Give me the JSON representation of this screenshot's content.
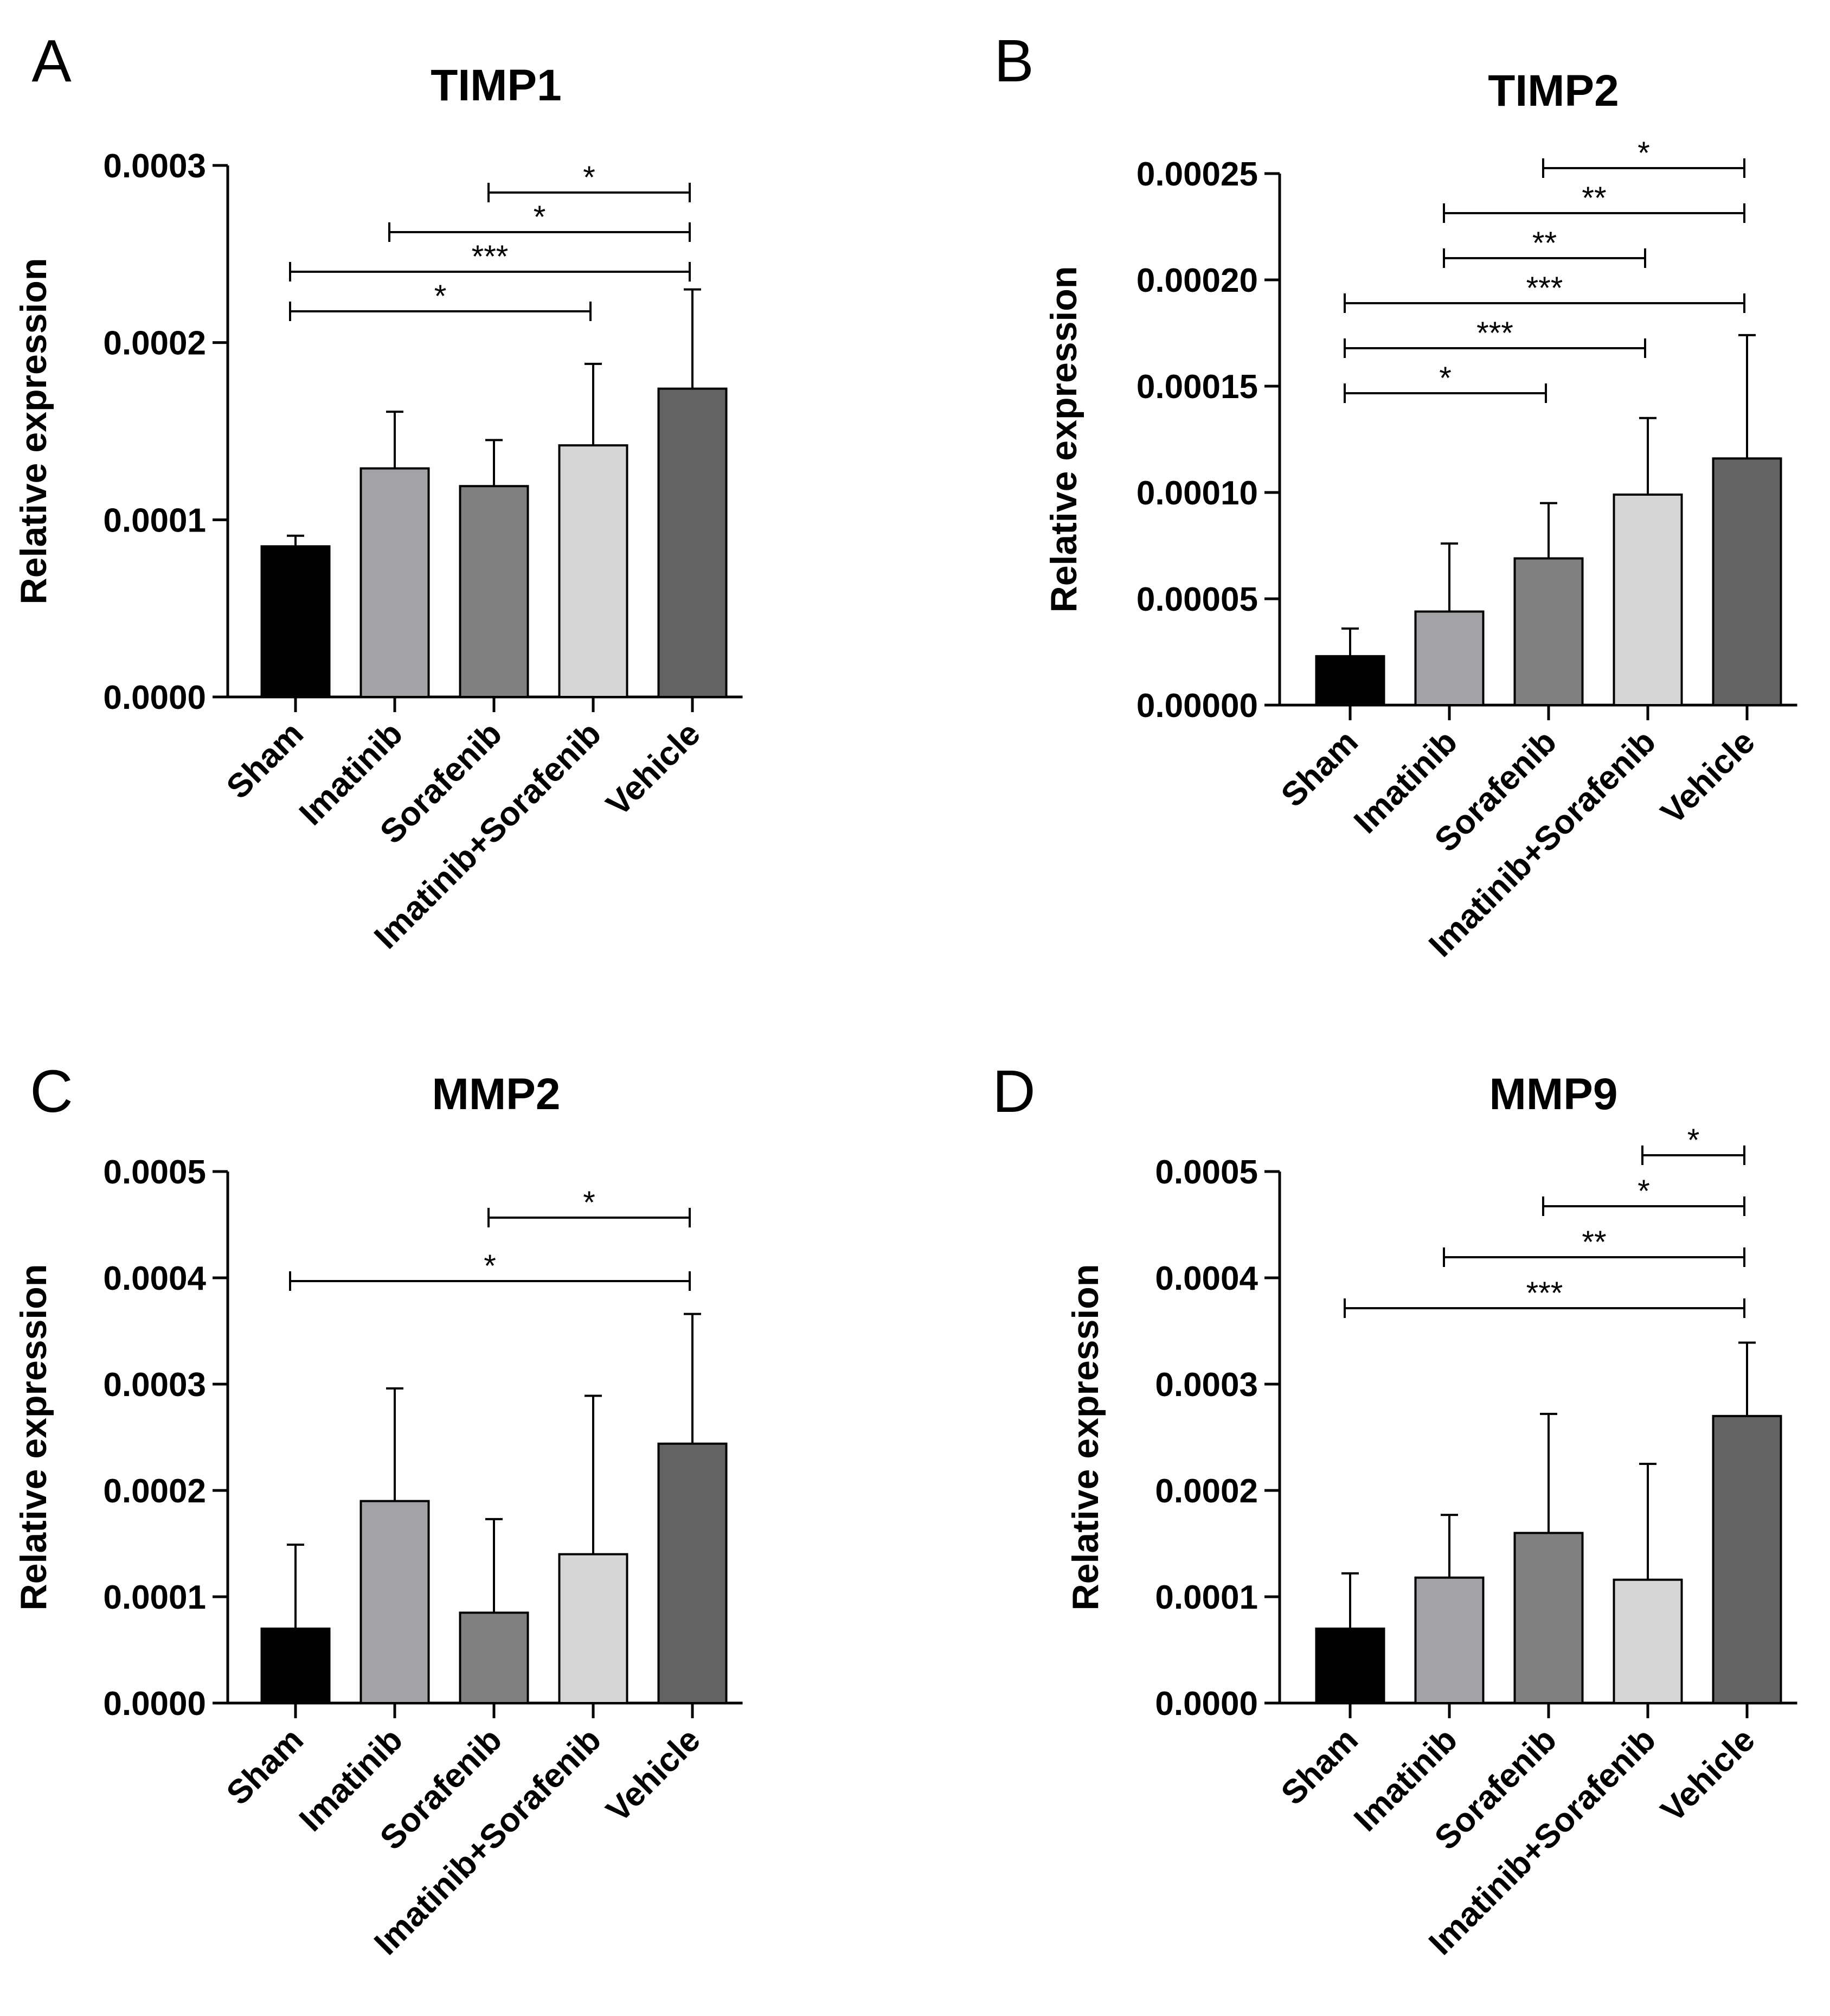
{
  "chart_data": [
    {
      "panel": "A",
      "type": "bar",
      "title": "TIMP1",
      "ylabel": "Relative expression",
      "xlabel": "",
      "categories": [
        "Sham",
        "Imatinib",
        "Sorafenib",
        "Imatinib+Sorafenib",
        "Vehicle"
      ],
      "values": [
        8.5e-05,
        0.000129,
        0.000119,
        0.000142,
        0.000174
      ],
      "errors": [
        6e-06,
        3.2e-05,
        2.6e-05,
        4.6e-05,
        5.6e-05
      ],
      "colors": [
        "#000000",
        "#a3a3a7",
        "#808080",
        "#d6d6d6",
        "#636363"
      ],
      "ylim": [
        0,
        0.0003
      ],
      "yticks": [
        "0.0000",
        "0.0001",
        "0.0002",
        "0.0003"
      ],
      "significance": [
        {
          "from": 2,
          "to": 4,
          "label": "*"
        },
        {
          "from": 1,
          "to": 4,
          "label": "*"
        },
        {
          "from": 0,
          "to": 4,
          "label": "***"
        },
        {
          "from": 0,
          "to": 3,
          "label": "*"
        }
      ]
    },
    {
      "panel": "B",
      "type": "bar",
      "title": "TIMP2",
      "ylabel": "Relative expression",
      "xlabel": "",
      "categories": [
        "Sham",
        "Imatinib",
        "Sorafenib",
        "Imatinib+Sorafenib",
        "Vehicle"
      ],
      "values": [
        2.3e-05,
        4.4e-05,
        6.9e-05,
        9.9e-05,
        0.000116
      ],
      "errors": [
        1.3e-05,
        3.2e-05,
        2.6e-05,
        3.6e-05,
        5.8e-05
      ],
      "colors": [
        "#000000",
        "#a3a3a7",
        "#808080",
        "#d6d6d6",
        "#636363"
      ],
      "ylim": [
        0,
        0.00025
      ],
      "yticks": [
        "0.00000",
        "0.00005",
        "0.00010",
        "0.00015",
        "0.00020",
        "0.00025"
      ],
      "significance": [
        {
          "from": 2,
          "to": 4,
          "label": "*"
        },
        {
          "from": 1,
          "to": 4,
          "label": "**"
        },
        {
          "from": 1,
          "to": 3,
          "label": "**"
        },
        {
          "from": 0,
          "to": 4,
          "label": "***"
        },
        {
          "from": 0,
          "to": 3,
          "label": "***"
        },
        {
          "from": 0,
          "to": 2,
          "label": "*"
        }
      ]
    },
    {
      "panel": "C",
      "type": "bar",
      "title": "MMP2",
      "ylabel": "Relative expression",
      "xlabel": "",
      "categories": [
        "Sham",
        "Imatinib",
        "Sorafenib",
        "Imatinib+Sorafenib",
        "Vehicle"
      ],
      "values": [
        7e-05,
        0.00019,
        8.5e-05,
        0.00014,
        0.000244
      ],
      "errors": [
        7.9e-05,
        0.000106,
        8.8e-05,
        0.000149,
        0.000122
      ],
      "colors": [
        "#000000",
        "#a3a3a7",
        "#808080",
        "#d6d6d6",
        "#636363"
      ],
      "ylim": [
        0,
        0.0005
      ],
      "yticks": [
        "0.0000",
        "0.0001",
        "0.0002",
        "0.0003",
        "0.0004",
        "0.0005"
      ],
      "significance": [
        {
          "from": 2,
          "to": 4,
          "label": "*"
        },
        {
          "from": 0,
          "to": 4,
          "label": "*"
        }
      ]
    },
    {
      "panel": "D",
      "type": "bar",
      "title": "MMP9",
      "ylabel": "Relative expression",
      "xlabel": "",
      "categories": [
        "Sham",
        "Imatinib",
        "Sorafenib",
        "Imatinib+Sorafenib",
        "Vehicle"
      ],
      "values": [
        7e-05,
        0.000118,
        0.00016,
        0.000116,
        0.00027
      ],
      "errors": [
        5.2e-05,
        5.9e-05,
        0.000112,
        0.000109,
        6.9e-05
      ],
      "colors": [
        "#000000",
        "#a3a3a7",
        "#808080",
        "#d6d6d6",
        "#636363"
      ],
      "ylim": [
        0,
        0.0005
      ],
      "yticks": [
        "0.0000",
        "0.0001",
        "0.0002",
        "0.0003",
        "0.0004",
        "0.0005"
      ],
      "significance": [
        {
          "from": 3,
          "to": 4,
          "label": "*"
        },
        {
          "from": 2,
          "to": 4,
          "label": "*"
        },
        {
          "from": 1,
          "to": 4,
          "label": "**"
        },
        {
          "from": 0,
          "to": 4,
          "label": "***"
        }
      ]
    }
  ]
}
